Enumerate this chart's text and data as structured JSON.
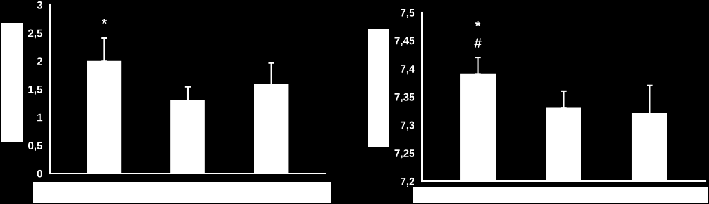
{
  "chart_data": [
    {
      "type": "bar",
      "categories": [
        null,
        null,
        null
      ],
      "values": [
        2.0,
        1.3,
        1.58
      ],
      "color": "#ffffff",
      "errors": [
        [
          2.0,
          2.41
        ],
        [
          1.3,
          1.54
        ],
        [
          1.58,
          1.97
        ]
      ],
      "ylim": [
        0,
        3
      ],
      "yticks": [
        0,
        {
          "value": 0.5,
          "label": "0,5"
        },
        1,
        {
          "value": 1.5,
          "label": "1,5"
        },
        2,
        {
          "value": 2.5,
          "label": "2,5"
        },
        3
      ],
      "annotations": [
        "*"
      ],
      "grid": false,
      "legend": false
    },
    {
      "type": "bar",
      "categories": [
        null,
        null,
        null
      ],
      "values": [
        7.39,
        7.33,
        7.32
      ],
      "color": "#ffffff",
      "errors": [
        [
          7.39,
          7.42
        ],
        [
          7.33,
          7.36
        ],
        [
          7.32,
          7.37
        ]
      ],
      "ylim": [
        7.2,
        7.5
      ],
      "yticks": [
        {
          "value": 7.2,
          "label": "7,2"
        },
        {
          "value": 7.25,
          "label": "7,25"
        },
        {
          "value": 7.3,
          "label": "7,3"
        },
        {
          "value": 7.35,
          "label": "7,35"
        },
        {
          "value": 7.4,
          "label": "7,4"
        },
        {
          "value": 7.45,
          "label": "7,45"
        },
        {
          "value": 7.5,
          "label": "7,5"
        }
      ],
      "annotations": [
        "*",
        "#"
      ],
      "grid": false,
      "legend": false
    }
  ]
}
